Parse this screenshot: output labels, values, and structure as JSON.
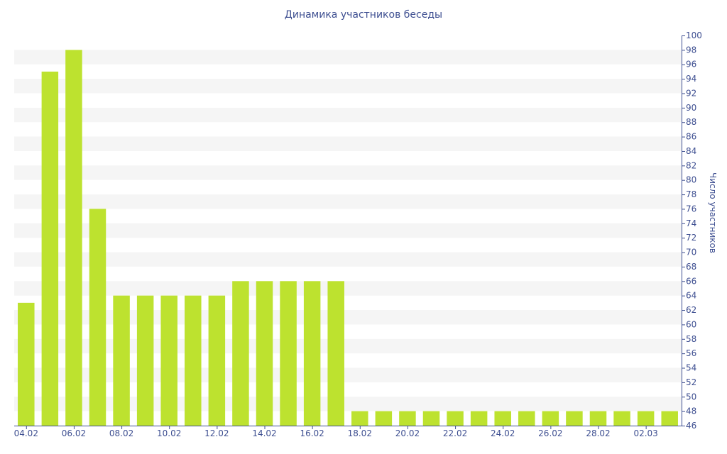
{
  "chart_data": {
    "type": "bar",
    "title": "Динамика участников беседы",
    "xlabel": "",
    "ylabel": "Число участников",
    "ylim": [
      46,
      100
    ],
    "y_ticks": [
      46,
      48,
      50,
      52,
      54,
      56,
      58,
      60,
      62,
      64,
      66,
      68,
      70,
      72,
      74,
      76,
      78,
      80,
      82,
      84,
      86,
      88,
      90,
      92,
      94,
      96,
      98,
      100
    ],
    "y_axis_position": "right",
    "grid": "alternating horizontal bands",
    "categories": [
      "04.02",
      "05.02",
      "06.02",
      "07.02",
      "08.02",
      "09.02",
      "10.02",
      "11.02",
      "12.02",
      "13.02",
      "14.02",
      "15.02",
      "16.02",
      "17.02",
      "18.02",
      "19.02",
      "20.02",
      "21.02",
      "22.02",
      "23.02",
      "24.02",
      "25.02",
      "26.02",
      "27.02",
      "28.02",
      "01.03",
      "02.03",
      "03.03"
    ],
    "x_tick_labels": [
      "04.02",
      "06.02",
      "08.02",
      "10.02",
      "12.02",
      "14.02",
      "16.02",
      "18.02",
      "20.02",
      "22.02",
      "24.02",
      "26.02",
      "28.02",
      "02.03"
    ],
    "values": [
      63,
      95,
      98,
      76,
      64,
      64,
      64,
      64,
      64,
      66,
      66,
      66,
      66,
      66,
      48,
      48,
      48,
      48,
      48,
      48,
      48,
      48,
      48,
      48,
      48,
      48,
      48,
      48
    ],
    "colors": {
      "bar": "#bde22f",
      "text": "#3e4f91",
      "axis": "#3e4f91",
      "band": "#f5f5f5"
    }
  }
}
